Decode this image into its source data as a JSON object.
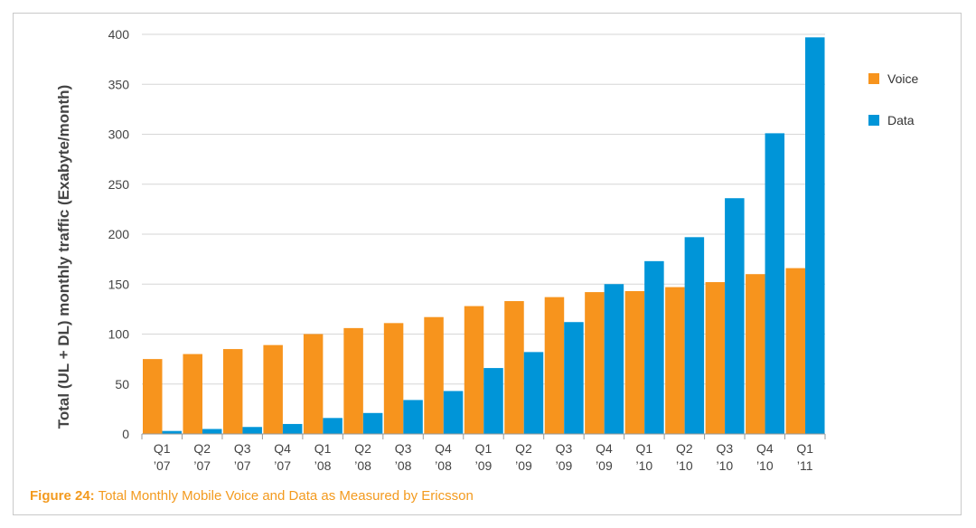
{
  "chart_data": {
    "type": "bar",
    "title": "",
    "xlabel": "",
    "ylabel": "Total (UL + DL) monthly traffic (Exabyte/month)",
    "ylim": [
      0,
      400
    ],
    "yticks": [
      0,
      50,
      100,
      150,
      200,
      250,
      300,
      350,
      400
    ],
    "grid": true,
    "legend_position": "right",
    "categories": [
      [
        "Q1",
        "’07"
      ],
      [
        "Q2",
        "’07"
      ],
      [
        "Q3",
        "’07"
      ],
      [
        "Q4",
        "’07"
      ],
      [
        "Q1",
        "’08"
      ],
      [
        "Q2",
        "’08"
      ],
      [
        "Q3",
        "’08"
      ],
      [
        "Q4",
        "’08"
      ],
      [
        "Q1",
        "’09"
      ],
      [
        "Q2",
        "’09"
      ],
      [
        "Q3",
        "’09"
      ],
      [
        "Q4",
        "’09"
      ],
      [
        "Q1",
        "’10"
      ],
      [
        "Q2",
        "’10"
      ],
      [
        "Q3",
        "’10"
      ],
      [
        "Q4",
        "’10"
      ],
      [
        "Q1",
        "’11"
      ]
    ],
    "series": [
      {
        "name": "Voice",
        "color": "#f7941d",
        "values": [
          75,
          80,
          85,
          89,
          100,
          106,
          111,
          117,
          128,
          133,
          137,
          142,
          143,
          147,
          152,
          160,
          166
        ]
      },
      {
        "name": "Data",
        "color": "#0095d8",
        "values": [
          3,
          5,
          7,
          10,
          16,
          21,
          34,
          43,
          66,
          82,
          112,
          150,
          173,
          197,
          236,
          301,
          397
        ]
      }
    ]
  },
  "caption": {
    "label": "Figure 24:",
    "text": " Total Monthly Mobile Voice and Data as Measured by Ericsson"
  }
}
